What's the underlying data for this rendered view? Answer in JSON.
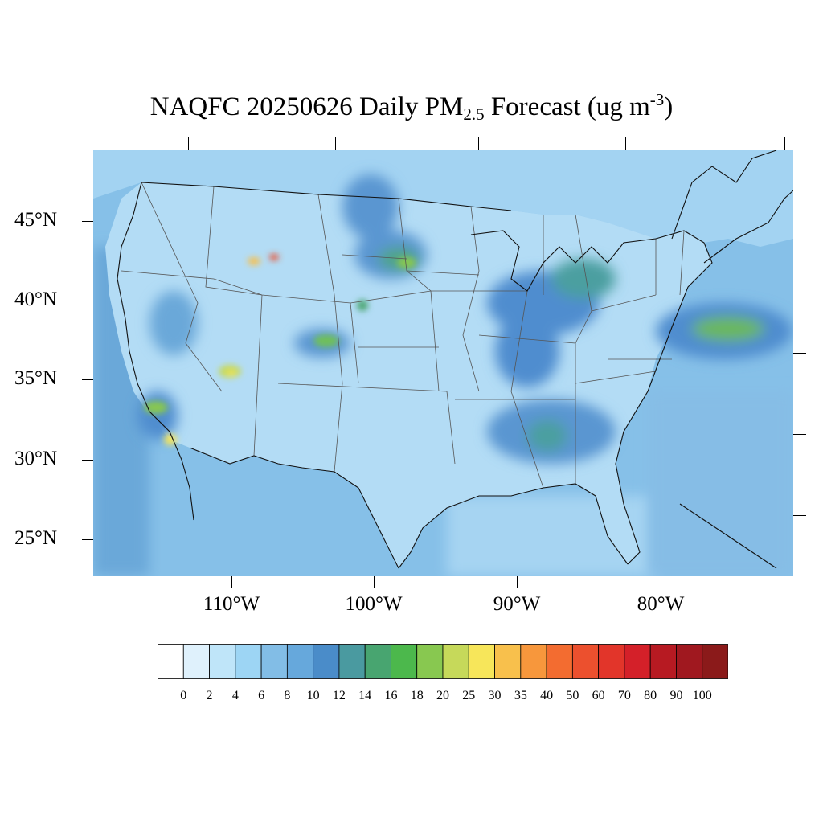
{
  "title": {
    "main": "NAQFC 20250626 Daily PM",
    "subscript": "2.5",
    "after_sub": " Forecast (ug m",
    "superscript": "-3",
    "close": ")"
  },
  "map": {
    "lat_labels": [
      "45°N",
      "40°N",
      "35°N",
      "30°N",
      "25°N"
    ],
    "lon_labels": [
      "110°W",
      "100°W",
      "90°W",
      "80°W"
    ],
    "ocean_color": "#6aa8d9",
    "land_color": "#a9d6f3"
  },
  "colorbar": {
    "labels": [
      "0",
      "2",
      "4",
      "6",
      "8",
      "10",
      "12",
      "14",
      "16",
      "18",
      "20",
      "25",
      "30",
      "35",
      "40",
      "50",
      "60",
      "70",
      "80",
      "90",
      "100"
    ],
    "colors": [
      "#ffffff",
      "#dff1fc",
      "#bfe5f9",
      "#9dd5f4",
      "#82bde6",
      "#66a8dc",
      "#4a8cc9",
      "#4a9aa0",
      "#48a570",
      "#4cb84c",
      "#88c850",
      "#c6d95a",
      "#f7e65a",
      "#f8c04c",
      "#f7973c",
      "#f36c30",
      "#ec502e",
      "#e2352a",
      "#d42029",
      "#b71a22",
      "#a0181f",
      "#8b1a1a"
    ]
  }
}
